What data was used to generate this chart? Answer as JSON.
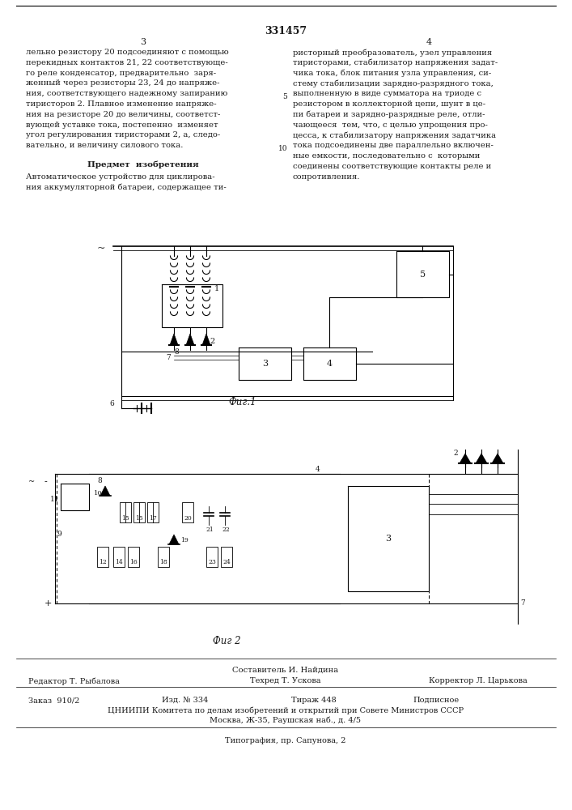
{
  "patent_number": "331457",
  "page_left": "3",
  "page_right": "4",
  "text_col1_lines": [
    "лельно резистору 20 подсоединяют с помощью",
    "перекидных контактов 21, 22 соответствующе-",
    "го реле конденсатор, предварительно  заря-",
    "женный через резисторы 23, 24 до напряже-",
    "ния, соответствующего надежному запиранию",
    "тиристоров 2. Плавное изменение напряже-",
    "ния на резисторе 20 до величины, соответст-",
    "вующей уставке тока, постепенно  изменяет",
    "угол регулирования тиристорами 2, а, следо-",
    "вательно, и величину силового тока."
  ],
  "subject_header": "Предмет  изобретения",
  "subject_line1": "Автоматическое устройство для циклирова-",
  "subject_line2": "ния аккумуляторной батареи, содержащее ти-",
  "text_col2_lines": [
    "ристорный преобразователь, узел управления",
    "тиристорами, стабилизатор напряжения задат-",
    "чика тока, блок питания узла управления, си-",
    "стему стабилизации зарядно-разрядного тока,",
    "выполненную в виде сумматора на триоде с",
    "резистором в коллекторной цепи, шунт в це-",
    "пи батареи и зарядно-разрядные реле, отли-",
    "чающееся  тем, что, с целью упрощения про-",
    "цесса, к стабилизатору напряжения задатчика",
    "тока подсоединены две параллельно включен-",
    "ные емкости, последовательно с  которыми",
    "соединены соответствующие контакты реле и",
    "сопротивления."
  ],
  "line_num_5": "5",
  "line_num_10": "10",
  "fig1_caption": "Фиг.1",
  "fig2_caption": "Фиг 2",
  "footer_composer": "Составитель И. Найдина",
  "footer_editor": "Редактор Т. Рыбалова",
  "footer_tech": "Техред Т. Ускова",
  "footer_corrector": "Корректор Л. Царькова",
  "footer_order": "Заказ  910/2",
  "footer_izd": "Изд. № 334",
  "footer_tirazh": "Тираж 448",
  "footer_podp": "Подписное",
  "footer_org": "ЦНИИПИ Комитета по делам изобретений и открытий при Совете Министров СССР",
  "footer_addr": "Москва, Ж-35, Раушская наб., д. 4/5",
  "footer_typ": "Типография, пр. Сапунова, 2",
  "bg_color": "#ffffff",
  "text_color": "#1a1a1a"
}
